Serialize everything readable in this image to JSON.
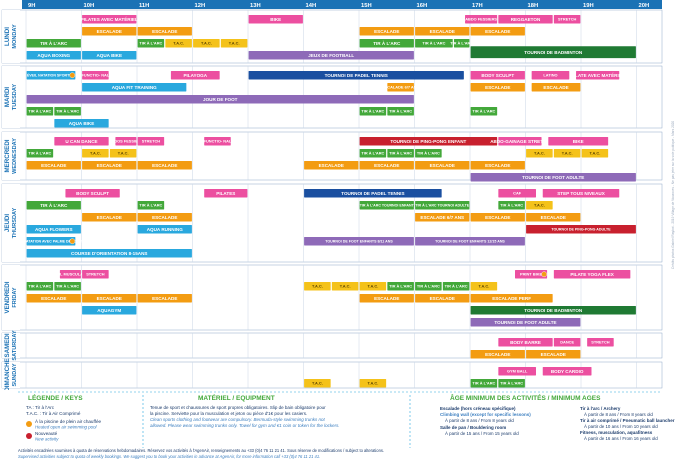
{
  "colors": {
    "pink": "#ec4fa0",
    "yellow": "#f4c21a",
    "green": "#43a83a",
    "orange": "#f39c12",
    "purple": "#8e6ab8",
    "blue": "#29a8de",
    "red": "#c8202e",
    "darkgreen": "#1f7a33",
    "navy": "#1a4fa0",
    "dayblue": "#1b72b5",
    "grid": "#c9d6e6"
  },
  "hours": [
    "9H",
    "10H",
    "11H",
    "12H",
    "13H",
    "14H",
    "15H",
    "16H",
    "17H",
    "18H",
    "19H",
    "20H"
  ],
  "days": [
    {
      "fr": "LUNDI",
      "en": "MONDAY"
    },
    {
      "fr": "MARDI",
      "en": "TUESDAY"
    },
    {
      "fr": "MERCREDI",
      "en": "WEDNESDAY"
    },
    {
      "fr": "JEUDI",
      "en": "THURSDAY"
    },
    {
      "fr": "VENDREDI",
      "en": "FRIDAY"
    },
    {
      "fr": "SAMEDI",
      "en": "SATURDAY"
    },
    {
      "fr": "DIMANCHE",
      "en": "SUNDAY"
    }
  ],
  "activities": [
    {
      "day": 0,
      "row": 0,
      "start": 10,
      "end": 11,
      "label": "PILATES AVEC MATÉRIEL",
      "color": "pink"
    },
    {
      "day": 0,
      "row": 0,
      "start": 13,
      "end": 14,
      "label": "BIKE",
      "color": "pink"
    },
    {
      "day": 0,
      "row": 0,
      "start": 16.9,
      "end": 17.5,
      "label": "ABDO FESSIERS",
      "color": "pink"
    },
    {
      "day": 0,
      "row": 0,
      "start": 17.5,
      "end": 18.5,
      "label": "REGGAETON",
      "color": "pink"
    },
    {
      "day": 0,
      "row": 0,
      "start": 18.5,
      "end": 19,
      "label": "STRETCH",
      "color": "pink"
    },
    {
      "day": 0,
      "row": 1,
      "start": 10,
      "end": 11,
      "label": "ESCALADE",
      "color": "orange"
    },
    {
      "day": 0,
      "row": 1,
      "start": 11,
      "end": 12,
      "label": "ESCALADE",
      "color": "orange"
    },
    {
      "day": 0,
      "row": 1,
      "start": 15,
      "end": 16,
      "label": "ESCALADE",
      "color": "orange"
    },
    {
      "day": 0,
      "row": 1,
      "start": 16,
      "end": 17,
      "label": "ESCALADE",
      "color": "orange"
    },
    {
      "day": 0,
      "row": 1,
      "start": 17,
      "end": 18,
      "label": "ESCALADE",
      "color": "orange"
    },
    {
      "day": 0,
      "row": 2,
      "start": 9,
      "end": 10,
      "label": "TIR À L'ARC",
      "color": "green"
    },
    {
      "day": 0,
      "row": 2,
      "start": 11,
      "end": 11.5,
      "label": "TIR À L'ARC",
      "color": "green"
    },
    {
      "day": 0,
      "row": 2,
      "start": 11.5,
      "end": 12,
      "label": "T.A.C.",
      "color": "yellow"
    },
    {
      "day": 0,
      "row": 2,
      "start": 12,
      "end": 12.5,
      "label": "T.A.C.",
      "color": "yellow"
    },
    {
      "day": 0,
      "row": 2,
      "start": 12.5,
      "end": 13,
      "label": "T.A.C.",
      "color": "yellow"
    },
    {
      "day": 0,
      "row": 2,
      "start": 15,
      "end": 16,
      "label": "TIR À L'ARC",
      "color": "green"
    },
    {
      "day": 0,
      "row": 2,
      "start": 16,
      "end": 16.7,
      "label": "TIR À L'ARC",
      "color": "green"
    },
    {
      "day": 0,
      "row": 2,
      "start": 16.7,
      "end": 17,
      "label": "TIR À L'ARC",
      "color": "green"
    },
    {
      "day": 0,
      "row": 3,
      "start": 9,
      "end": 10,
      "label": "AQUA BOXING",
      "color": "blue"
    },
    {
      "day": 0,
      "row": 3,
      "start": 10,
      "end": 11,
      "label": "AQUA BIKE",
      "color": "blue"
    },
    {
      "day": 0,
      "row": 3,
      "start": 13,
      "end": 16,
      "label": "JEUX DE FOOTBALL",
      "color": "purple"
    },
    {
      "day": 0,
      "row": 2.6,
      "start": 17,
      "end": 20,
      "label": "TOURNOI DE BADMINTON",
      "color": "darkgreen",
      "h": 1.4
    },
    {
      "day": 1,
      "row": 0,
      "start": 9,
      "end": 9.9,
      "label": "ÉVEIL NATATION SPORTIVE",
      "color": "blue",
      "icon": true
    },
    {
      "day": 1,
      "row": 0,
      "start": 10,
      "end": 10.5,
      "label": "FUNCTIO- NAL",
      "color": "pink"
    },
    {
      "day": 1,
      "row": 0,
      "start": 11.6,
      "end": 12.5,
      "label": "PILAYOGA",
      "color": "pink"
    },
    {
      "day": 1,
      "row": 0,
      "start": 13,
      "end": 16.9,
      "label": "TOURNOI DE PADEL TENNIS",
      "color": "navy"
    },
    {
      "day": 1,
      "row": 0,
      "start": 17,
      "end": 18,
      "label": "BODY SCULPT",
      "color": "pink"
    },
    {
      "day": 1,
      "row": 0,
      "start": 18.1,
      "end": 18.8,
      "label": "LATINO",
      "color": "pink"
    },
    {
      "day": 1,
      "row": 0,
      "start": 18.9,
      "end": 19.7,
      "label": "PILATE AVEC MATÉRIEL",
      "color": "pink"
    },
    {
      "day": 1,
      "row": 1,
      "start": 10,
      "end": 11.9,
      "label": "AQUA FIT TRAINING",
      "color": "blue"
    },
    {
      "day": 1,
      "row": 1,
      "start": 15.5,
      "end": 16,
      "label": "ESCALADE 6/7 ANS",
      "color": "orange"
    },
    {
      "day": 1,
      "row": 1,
      "start": 17,
      "end": 18,
      "label": "ESCALADE",
      "color": "orange"
    },
    {
      "day": 1,
      "row": 1,
      "start": 18.1,
      "end": 19,
      "label": "ESCALADE",
      "color": "orange"
    },
    {
      "day": 1,
      "row": 2,
      "start": 9,
      "end": 16,
      "label": "JOUR DE FOOT",
      "color": "purple"
    },
    {
      "day": 1,
      "row": 3,
      "start": 9,
      "end": 9.5,
      "label": "TIR À L'ARC",
      "color": "green"
    },
    {
      "day": 1,
      "row": 3,
      "start": 9.5,
      "end": 10,
      "label": "TIR À L'ARC",
      "color": "green"
    },
    {
      "day": 1,
      "row": 3,
      "start": 15,
      "end": 15.5,
      "label": "TIR À L'ARC",
      "color": "green"
    },
    {
      "day": 1,
      "row": 3,
      "start": 15.5,
      "end": 16,
      "label": "TIR À L'ARC",
      "color": "green"
    },
    {
      "day": 1,
      "row": 3,
      "start": 17,
      "end": 17.5,
      "label": "TIR À L'ARC",
      "color": "green"
    },
    {
      "day": 1,
      "row": 4,
      "start": 9.5,
      "end": 10.5,
      "label": "AQUA BIKE",
      "color": "blue"
    },
    {
      "day": 2,
      "row": 0,
      "start": 9.5,
      "end": 10.5,
      "label": "U CAN DANCE",
      "color": "pink"
    },
    {
      "day": 2,
      "row": 0,
      "start": 10.6,
      "end": 11,
      "label": "ABDOS FESSIERS",
      "color": "pink"
    },
    {
      "day": 2,
      "row": 0,
      "start": 11,
      "end": 11.5,
      "label": "STRETCH",
      "color": "pink"
    },
    {
      "day": 2,
      "row": 0,
      "start": 12.2,
      "end": 12.7,
      "label": "FUNCTIO- NAL",
      "color": "pink"
    },
    {
      "day": 2,
      "row": 0,
      "start": 15,
      "end": 17.5,
      "label": "TOURNOI DE PING-PONG ENFANT",
      "color": "red"
    },
    {
      "day": 2,
      "row": 0,
      "start": 17.5,
      "end": 18.3,
      "label": "ABDO-GAINAGE STRETCH",
      "color": "pink"
    },
    {
      "day": 2,
      "row": 0,
      "start": 18.4,
      "end": 19.5,
      "label": "BIKE",
      "color": "pink"
    },
    {
      "day": 2,
      "row": 1,
      "start": 9,
      "end": 9.5,
      "label": "TIR À L'ARC",
      "color": "green"
    },
    {
      "day": 2,
      "row": 1,
      "start": 10,
      "end": 10.5,
      "label": "T.A.C.",
      "color": "yellow"
    },
    {
      "day": 2,
      "row": 1,
      "start": 10.5,
      "end": 11,
      "label": "T.A.C.",
      "color": "yellow"
    },
    {
      "day": 2,
      "row": 1,
      "start": 15,
      "end": 15.5,
      "label": "TIR À L'ARC",
      "color": "green"
    },
    {
      "day": 2,
      "row": 1,
      "start": 15.5,
      "end": 16,
      "label": "TIR À L'ARC",
      "color": "green"
    },
    {
      "day": 2,
      "row": 1,
      "start": 16,
      "end": 16.5,
      "label": "TIR À L'ARC",
      "color": "green"
    },
    {
      "day": 2,
      "row": 1,
      "start": 18,
      "end": 18.5,
      "label": "T.A.C.",
      "color": "yellow"
    },
    {
      "day": 2,
      "row": 1,
      "start": 18.5,
      "end": 19,
      "label": "T.A.C.",
      "color": "yellow"
    },
    {
      "day": 2,
      "row": 1,
      "start": 19,
      "end": 19.5,
      "label": "T.A.C.",
      "color": "yellow"
    },
    {
      "day": 2,
      "row": 2,
      "start": 9,
      "end": 10,
      "label": "ESCALADE",
      "color": "orange"
    },
    {
      "day": 2,
      "row": 2,
      "start": 10,
      "end": 11,
      "label": "ESCALADE",
      "color": "orange"
    },
    {
      "day": 2,
      "row": 2,
      "start": 11,
      "end": 12,
      "label": "ESCALADE",
      "color": "orange"
    },
    {
      "day": 2,
      "row": 2,
      "start": 14,
      "end": 15,
      "label": "ESCALADE",
      "color": "orange"
    },
    {
      "day": 2,
      "row": 2,
      "start": 15,
      "end": 16,
      "label": "ESCALADE",
      "color": "orange"
    },
    {
      "day": 2,
      "row": 2,
      "start": 16,
      "end": 17,
      "label": "ESCALADE",
      "color": "orange"
    },
    {
      "day": 2,
      "row": 2,
      "start": 17,
      "end": 18,
      "label": "ESCALADE",
      "color": "orange"
    },
    {
      "day": 2,
      "row": 3,
      "start": 17,
      "end": 20,
      "label": "TOURNOI DE FOOT ADULTE",
      "color": "purple"
    },
    {
      "day": 3,
      "row": 0,
      "start": 9.7,
      "end": 10.7,
      "label": "BODY SCULPT",
      "color": "pink"
    },
    {
      "day": 3,
      "row": 0,
      "start": 12.2,
      "end": 13,
      "label": "PILATES",
      "color": "pink"
    },
    {
      "day": 3,
      "row": 0,
      "start": 14,
      "end": 16.5,
      "label": "TOURNOI DE PADEL TENNIS",
      "color": "navy"
    },
    {
      "day": 3,
      "row": 0,
      "start": 17.5,
      "end": 18.2,
      "label": "CAF",
      "color": "pink"
    },
    {
      "day": 3,
      "row": 0,
      "start": 18.3,
      "end": 19.7,
      "label": "STEP TOUS NIVEAUX",
      "color": "pink"
    },
    {
      "day": 3,
      "row": 1,
      "start": 9,
      "end": 10,
      "label": "TIR À L'ARC",
      "color": "green"
    },
    {
      "day": 3,
      "row": 1,
      "start": 11,
      "end": 11.5,
      "label": "TIR À L'ARC",
      "color": "green"
    },
    {
      "day": 3,
      "row": 1,
      "start": 15,
      "end": 16,
      "label": "TIR À L'ARC TOURNOI ENFANT",
      "color": "green"
    },
    {
      "day": 3,
      "row": 1,
      "start": 16,
      "end": 17,
      "label": "TIR À L'ARC TOURNOI ADULTE",
      "color": "green"
    },
    {
      "day": 3,
      "row": 1,
      "start": 17.5,
      "end": 18,
      "label": "TIR À L'ARC",
      "color": "green"
    },
    {
      "day": 3,
      "row": 1,
      "start": 18,
      "end": 18.5,
      "label": "T.A.C.",
      "color": "yellow"
    },
    {
      "day": 3,
      "row": 2,
      "start": 10,
      "end": 11,
      "label": "ESCALADE",
      "color": "orange"
    },
    {
      "day": 3,
      "row": 2,
      "start": 11,
      "end": 12,
      "label": "ESCALADE",
      "color": "orange"
    },
    {
      "day": 3,
      "row": 2,
      "start": 16,
      "end": 17,
      "label": "ESCALADE 6/7 ANS",
      "color": "orange"
    },
    {
      "day": 3,
      "row": 2,
      "start": 17,
      "end": 18,
      "label": "ESCALADE",
      "color": "orange"
    },
    {
      "day": 3,
      "row": 2,
      "start": 18,
      "end": 19,
      "label": "ESCALADE",
      "color": "orange"
    },
    {
      "day": 3,
      "row": 3,
      "start": 9,
      "end": 10,
      "label": "AQUA FLOWERS",
      "color": "blue"
    },
    {
      "day": 3,
      "row": 3,
      "start": 11,
      "end": 12,
      "label": "AQUA RUNNING",
      "color": "blue"
    },
    {
      "day": 3,
      "row": 3,
      "start": 18,
      "end": 20,
      "label": "TOURNOI DE PING-PONG ADULTE",
      "color": "red"
    },
    {
      "day": 3,
      "row": 4,
      "start": 9,
      "end": 9.9,
      "label": "BB40 - NATATION AVEC PALME DÉCOUVERTE",
      "color": "blue",
      "icon": true
    },
    {
      "day": 3,
      "row": 4,
      "start": 14,
      "end": 16,
      "label": "TOURNOI DE FOOT ENFANTS 8/11 ANS",
      "color": "purple"
    },
    {
      "day": 3,
      "row": 4,
      "start": 16,
      "end": 18,
      "label": "TOURNOI DE FOOT ENFANTS 12/15 ANS",
      "color": "purple"
    },
    {
      "day": 3,
      "row": 5,
      "start": 9,
      "end": 12,
      "label": "COURSE D'ORIENTATION 8-15ANS",
      "color": "blue"
    },
    {
      "day": 4,
      "row": 0,
      "start": 9.6,
      "end": 10,
      "label": "ÉVEIL MUSCULAIRE",
      "color": "pink"
    },
    {
      "day": 4,
      "row": 0,
      "start": 10,
      "end": 10.5,
      "label": "STRETCH",
      "color": "pink"
    },
    {
      "day": 4,
      "row": 0,
      "start": 17.8,
      "end": 18.4,
      "label": "PRINT BIKE",
      "color": "pink",
      "icon": true
    },
    {
      "day": 4,
      "row": 0,
      "start": 18.5,
      "end": 19.9,
      "label": "PILATE YOGA FLEX",
      "color": "pink"
    },
    {
      "day": 4,
      "row": 1,
      "start": 9,
      "end": 9.5,
      "label": "TIR À L'ARC",
      "color": "green"
    },
    {
      "day": 4,
      "row": 1,
      "start": 9.5,
      "end": 10,
      "label": "TIR À L'ARC",
      "color": "green"
    },
    {
      "day": 4,
      "row": 1,
      "start": 14,
      "end": 14.5,
      "label": "T.A.C.",
      "color": "yellow"
    },
    {
      "day": 4,
      "row": 1,
      "start": 14.5,
      "end": 15,
      "label": "T.A.C.",
      "color": "yellow"
    },
    {
      "day": 4,
      "row": 1,
      "start": 15,
      "end": 15.5,
      "label": "T.A.C.",
      "color": "yellow"
    },
    {
      "day": 4,
      "row": 1,
      "start": 15.5,
      "end": 16,
      "label": "TIR À L'ARC",
      "color": "green"
    },
    {
      "day": 4,
      "row": 1,
      "start": 16,
      "end": 16.5,
      "label": "TIR À L'ARC",
      "color": "green"
    },
    {
      "day": 4,
      "row": 1,
      "start": 16.5,
      "end": 17,
      "label": "TIR À L'ARC",
      "color": "green"
    },
    {
      "day": 4,
      "row": 1,
      "start": 17,
      "end": 17.5,
      "label": "T.A.C.",
      "color": "yellow"
    },
    {
      "day": 4,
      "row": 2,
      "start": 9,
      "end": 10,
      "label": "ESCALADE",
      "color": "orange"
    },
    {
      "day": 4,
      "row": 2,
      "start": 10,
      "end": 11,
      "label": "ESCALADE",
      "color": "orange"
    },
    {
      "day": 4,
      "row": 2,
      "start": 11,
      "end": 12,
      "label": "ESCALADE",
      "color": "orange"
    },
    {
      "day": 4,
      "row": 2,
      "start": 15,
      "end": 16,
      "label": "ESCALADE",
      "color": "orange"
    },
    {
      "day": 4,
      "row": 2,
      "start": 16,
      "end": 17,
      "label": "ESCALADE",
      "color": "orange"
    },
    {
      "day": 4,
      "row": 2,
      "start": 17,
      "end": 18.5,
      "label": "ESCALADE PERF",
      "color": "orange"
    },
    {
      "day": 4,
      "row": 3,
      "start": 10,
      "end": 11,
      "label": "AQUAGYM",
      "color": "blue"
    },
    {
      "day": 4,
      "row": 3,
      "start": 17,
      "end": 20,
      "label": "TOURNOI DE BADMINTON",
      "color": "darkgreen"
    },
    {
      "day": 4,
      "row": 4,
      "start": 17,
      "end": 19,
      "label": "TOURNOI DE FOOT ADULTE",
      "color": "purple"
    },
    {
      "day": 5,
      "row": 0,
      "start": 17.5,
      "end": 18.5,
      "label": "BODY BARRE",
      "color": "pink"
    },
    {
      "day": 5,
      "row": 0,
      "start": 18.5,
      "end": 19,
      "label": "DANCE",
      "color": "pink"
    },
    {
      "day": 5,
      "row": 0,
      "start": 19.1,
      "end": 19.6,
      "label": "STRETCH",
      "color": "pink"
    },
    {
      "day": 5,
      "row": 1,
      "start": 17,
      "end": 18,
      "label": "ESCALADE",
      "color": "orange"
    },
    {
      "day": 5,
      "row": 1,
      "start": 18,
      "end": 19,
      "label": "ESCALADE",
      "color": "orange"
    },
    {
      "day": 6,
      "row": 0,
      "start": 17.5,
      "end": 18.2,
      "label": "GYM BALL",
      "color": "pink"
    },
    {
      "day": 6,
      "row": 0,
      "start": 18.3,
      "end": 19.2,
      "label": "BODY CARDIO",
      "color": "pink"
    },
    {
      "day": 6,
      "row": 1,
      "start": 14,
      "end": 14.5,
      "label": "T.A.C.",
      "color": "yellow"
    },
    {
      "day": 6,
      "row": 1,
      "start": 15,
      "end": 15.5,
      "label": "T.A.C.",
      "color": "yellow"
    },
    {
      "day": 6,
      "row": 1,
      "start": 17,
      "end": 17.5,
      "label": "TIR À L'ARC",
      "color": "green"
    },
    {
      "day": 6,
      "row": 1,
      "start": 17.5,
      "end": 18,
      "label": "TIR À L'ARC",
      "color": "green"
    },
    {
      "day": 6,
      "row": 2,
      "start": 17,
      "end": 18,
      "label": "ESCALADE",
      "color": "orange"
    },
    {
      "day": 6,
      "row": 2,
      "start": 18,
      "end": 19,
      "label": "ESCALADE BLOC",
      "color": "orange"
    }
  ],
  "legend": {
    "title": "LÉGENDE / KEYS",
    "lines": [
      "TA : Tir à l'Arc",
      "T.A.C. : Tir à Air Comprimé",
      "À la piscine de plein air chauffée",
      "Heated open air swimming pool",
      "Nouveauté",
      "New activity"
    ]
  },
  "materiel": {
    "title": "MATÉRIEL / EQUIPMENT",
    "lines": [
      "Tenue de sport et chaussures de sport propres obligatoires. Slip de bain obligatoire pour",
      "la piscine. Serviette pour la musculation et jeton ou pièce d'1€ pour les casiers.",
      "Clean sports clothing and footwear are compulsory. Bermuda-style swimming trunks not",
      "allowed. Please wear swimming trunks only. Towel for gym and €1 coin or token for the lockers."
    ]
  },
  "age": {
    "title": "ÂGE MINIMUM DES ACTIVITÉS / MINIMUM AGES",
    "left": [
      "Escalade (hors créneau spécifique)",
      "Climbing wall (except for specific lessons)",
      "À partir de 8 ans / From 8 years old",
      "Salle de pan / Bouldering room",
      "À partir de 15 ans / From 15 years old"
    ],
    "right": [
      "Tir à l'arc / Archery",
      "À partir de 8 ans / From 8 years old",
      "Tir à air comprimé / Pneumatic ball launcher",
      "À partir de 10 ans / From 10 years old",
      "Fitness, musculation, aquafitness",
      "À partir de 16 ans / From 16 years old"
    ]
  },
  "notes": [
    "Activités encadrées soumises à quota de réservations hebdomadaires. Réservez vos activités à l'AgenAir, renseignements au +33 (0)4 76 11 21 41. Sous réserve de modifications / subject to alterations.",
    "Supervised activities subject to quota of weekly bookings. We suggest you to book your activities in advance at AgenAir, for more information call +33 (0)4 76 11 21 41."
  ],
  "side_credit": "Crédits photos Gabriel Raybot - 2019 Village de Vacances - Ne pas jeter sur la voie publique - Mars 2020"
}
